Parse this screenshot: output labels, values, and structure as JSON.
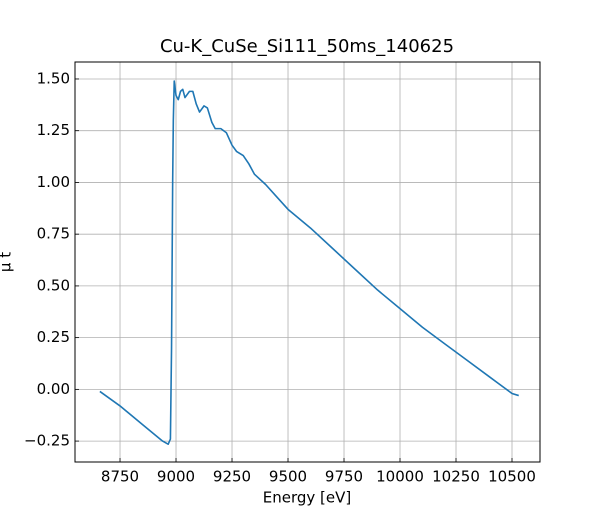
{
  "chart_data": {
    "type": "line",
    "title": "Cu-K_CuSe_Si111_50ms_140625",
    "xlabel": "Energy [eV]",
    "ylabel": "μ t",
    "color": "#1f77b4",
    "grid": true,
    "x": [
      8660,
      8750,
      8850,
      8940,
      8965,
      8975,
      8980,
      8985,
      8988,
      8992,
      9000,
      9010,
      9020,
      9030,
      9040,
      9060,
      9075,
      9090,
      9105,
      9125,
      9140,
      9160,
      9175,
      9200,
      9225,
      9250,
      9270,
      9300,
      9325,
      9350,
      9400,
      9450,
      9500,
      9600,
      9700,
      9800,
      9900,
      10000,
      10100,
      10200,
      10300,
      10400,
      10500,
      10530
    ],
    "values": [
      -0.01,
      -0.08,
      -0.17,
      -0.25,
      -0.265,
      -0.24,
      0.2,
      1.0,
      1.3,
      1.49,
      1.42,
      1.4,
      1.44,
      1.45,
      1.41,
      1.44,
      1.44,
      1.38,
      1.34,
      1.37,
      1.36,
      1.29,
      1.26,
      1.26,
      1.24,
      1.18,
      1.15,
      1.13,
      1.09,
      1.04,
      0.99,
      0.93,
      0.87,
      0.78,
      0.68,
      0.58,
      0.48,
      0.39,
      0.3,
      0.22,
      0.14,
      0.06,
      -0.02,
      -0.03
    ],
    "xlim": [
      8549,
      10625
    ],
    "xticks": [
      8750,
      9000,
      9250,
      9500,
      9750,
      10000,
      10250,
      10500
    ],
    "ylim": [
      -0.351,
      1.582
    ],
    "yticks": [
      {
        "value": -0.25,
        "label": "−0.25"
      },
      {
        "value": 0,
        "label": "0.00"
      },
      0.25,
      {
        "value": 0.5,
        "label": "0.50"
      },
      0.75,
      {
        "value": 1,
        "label": "1.00"
      },
      1.25,
      {
        "value": 1.5,
        "label": "1.50"
      }
    ]
  }
}
